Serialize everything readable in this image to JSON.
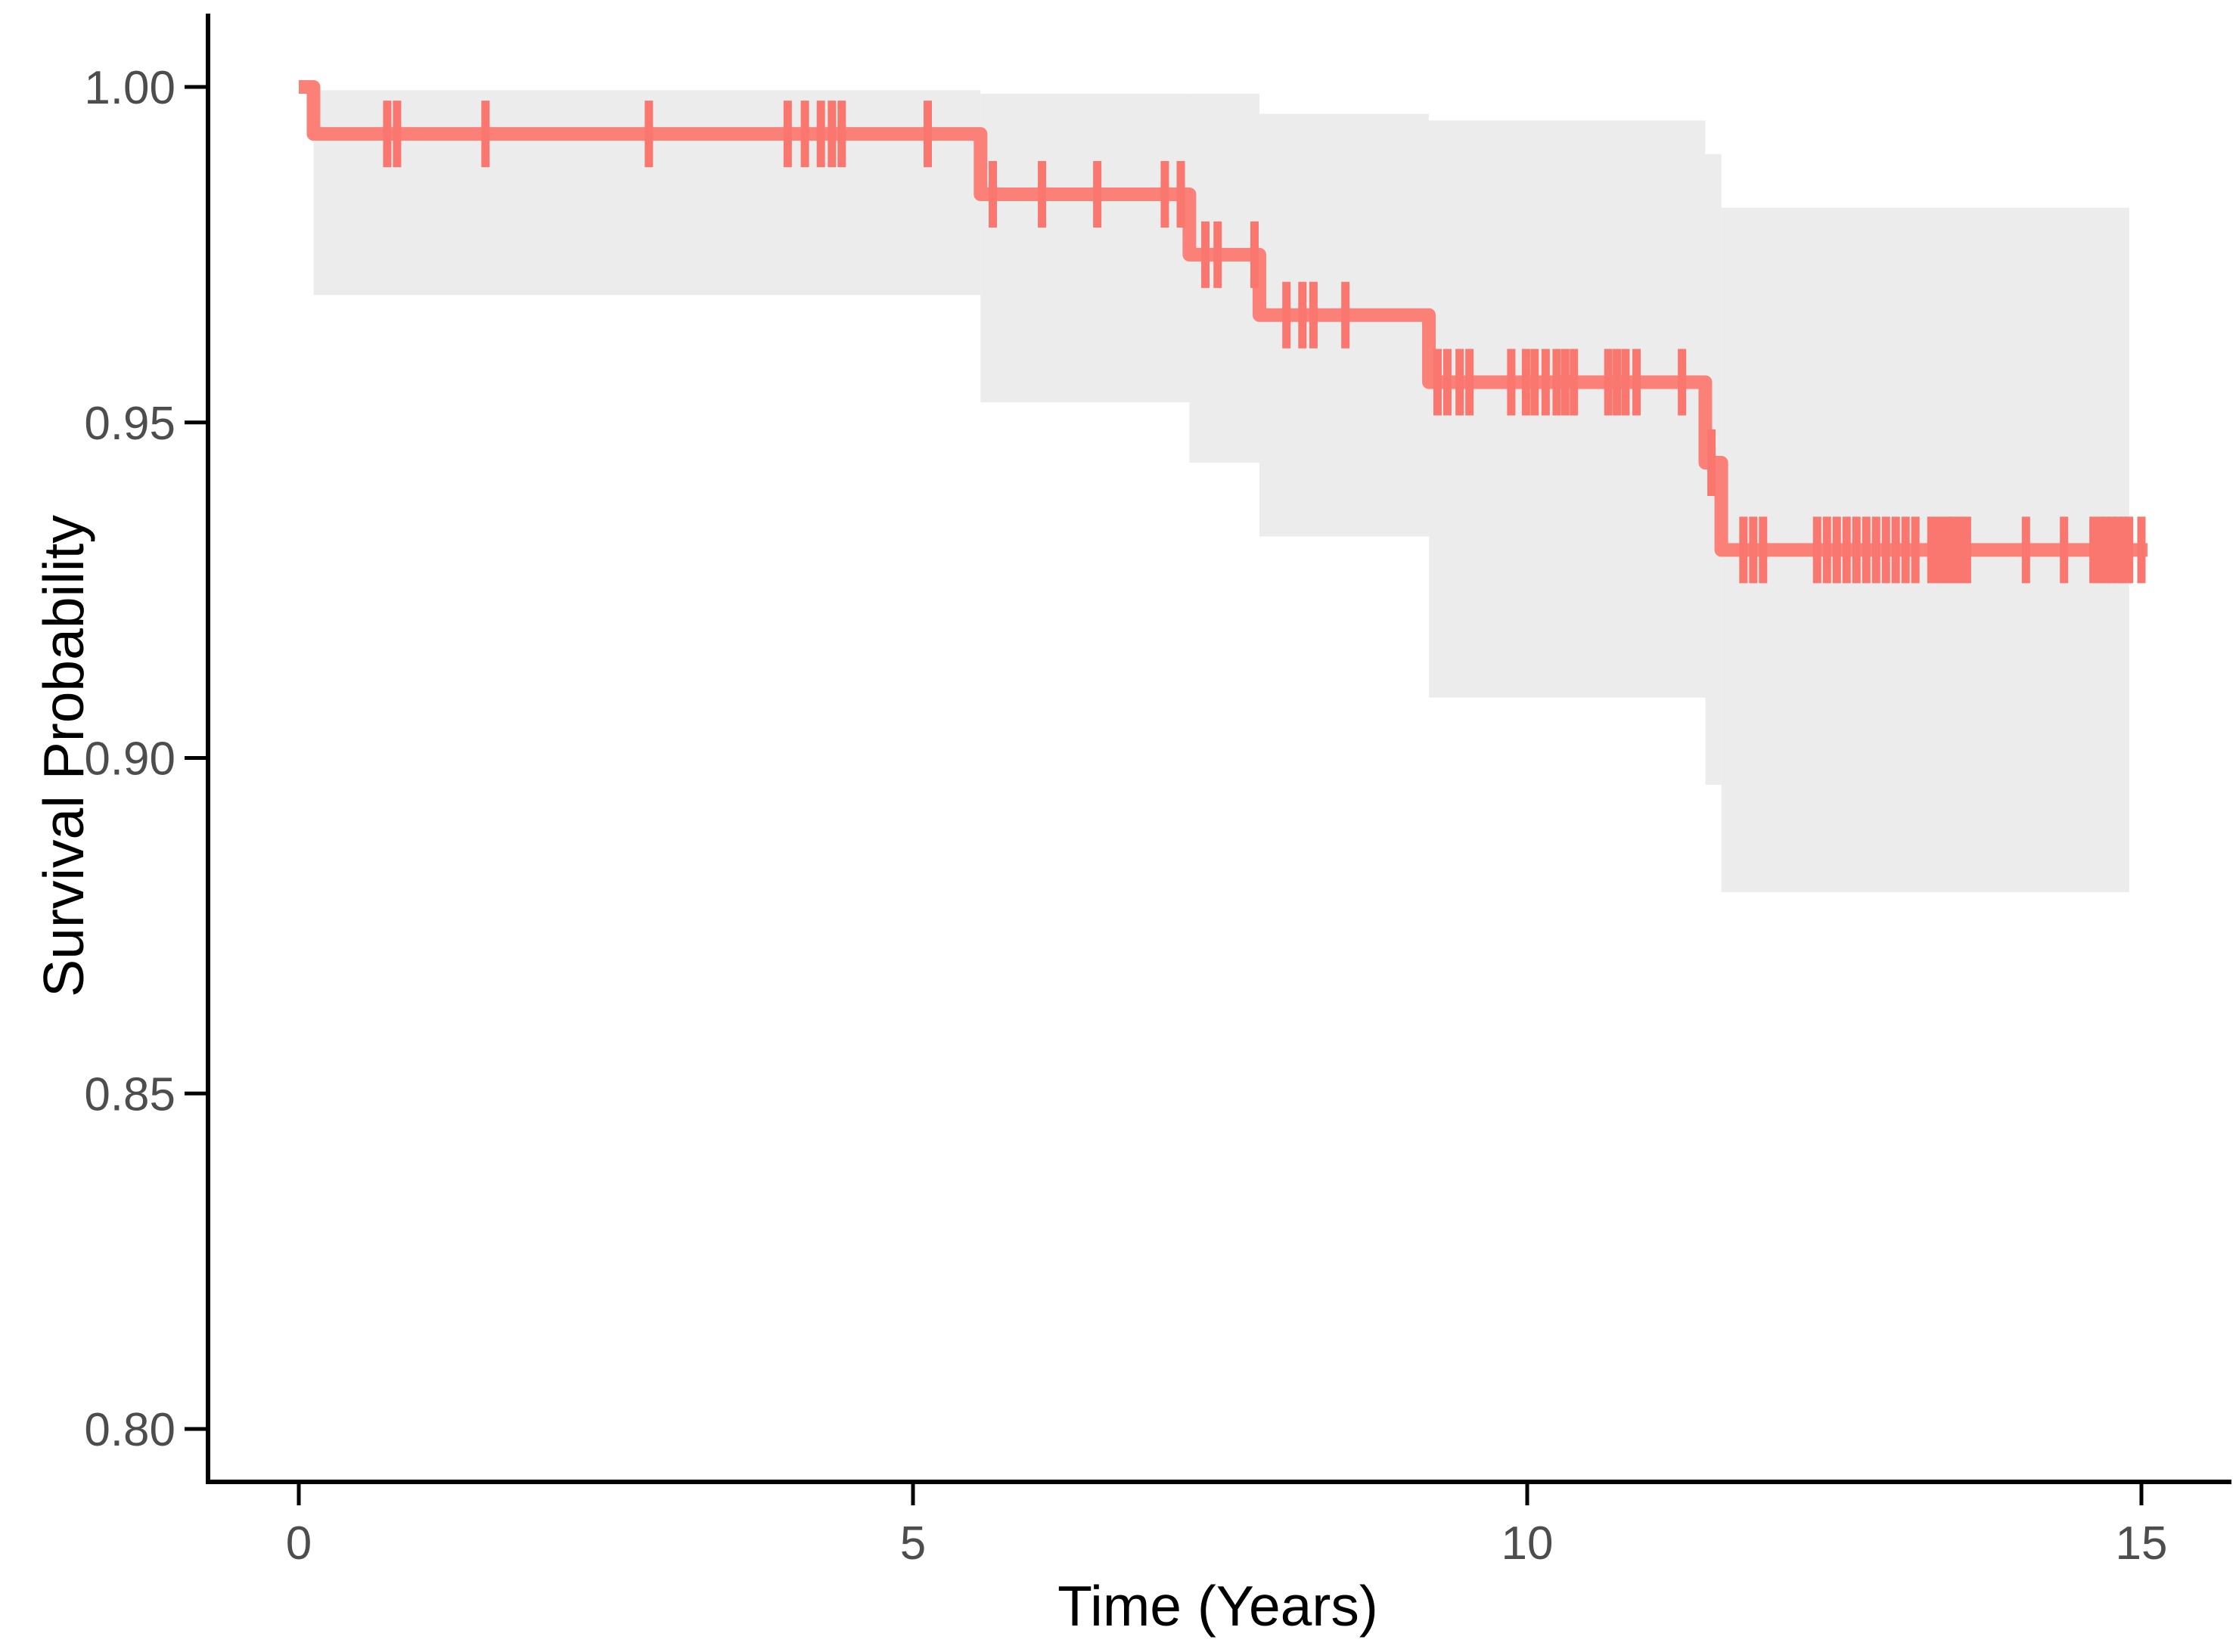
{
  "chart_data": {
    "type": "line",
    "subtype": "kaplan_meier_step_curve",
    "title": "",
    "xlabel": "Time (Years)",
    "ylabel": "Survival Probability",
    "x_ticks": [
      {
        "value": 0,
        "label": "0"
      },
      {
        "value": 5,
        "label": "5"
      },
      {
        "value": 10,
        "label": "10"
      },
      {
        "value": 15,
        "label": "15"
      }
    ],
    "y_ticks": [
      {
        "value": 1.0,
        "label": "1.00"
      },
      {
        "value": 0.95,
        "label": "0.95"
      },
      {
        "value": 0.9,
        "label": "0.90"
      },
      {
        "value": 0.85,
        "label": "0.85"
      },
      {
        "value": 0.8,
        "label": "0.80"
      }
    ],
    "xlim": [
      -0.74,
      15.73
    ],
    "ylim": [
      0.792,
      1.011
    ],
    "grid": false,
    "legend": false,
    "colors": {
      "curve": "#FA8078",
      "censor": "#F9776E",
      "ci_band": "#ECECEC",
      "axis": "#000000",
      "tick_label": "#4D4D4D",
      "title": "#000000",
      "background": "#FFFFFF"
    },
    "series": [
      {
        "name": "survival",
        "steps": [
          {
            "t": 0.0,
            "s": 1.0
          },
          {
            "t": 0.12,
            "s": 0.993
          },
          {
            "t": 5.55,
            "s": 0.984
          },
          {
            "t": 7.25,
            "s": 0.975
          },
          {
            "t": 7.82,
            "s": 0.966
          },
          {
            "t": 9.2,
            "s": 0.956
          },
          {
            "t": 11.45,
            "s": 0.944
          },
          {
            "t": 11.58,
            "s": 0.931
          }
        ],
        "end_time": 15.05,
        "censor_times": [
          [
            0.72,
            0.993
          ],
          [
            0.8,
            0.993
          ],
          [
            1.52,
            0.993
          ],
          [
            2.85,
            0.993
          ],
          [
            3.98,
            0.993
          ],
          [
            4.12,
            0.993
          ],
          [
            4.25,
            0.993
          ],
          [
            4.34,
            0.993
          ],
          [
            4.42,
            0.993
          ],
          [
            5.12,
            0.993
          ],
          [
            5.65,
            0.984
          ],
          [
            6.05,
            0.984
          ],
          [
            6.5,
            0.984
          ],
          [
            7.05,
            0.984
          ],
          [
            7.18,
            0.984
          ],
          [
            7.38,
            0.975
          ],
          [
            7.48,
            0.975
          ],
          [
            7.78,
            0.975
          ],
          [
            8.04,
            0.966
          ],
          [
            8.17,
            0.966
          ],
          [
            8.26,
            0.966
          ],
          [
            8.52,
            0.966
          ],
          [
            9.27,
            0.956
          ],
          [
            9.35,
            0.956
          ],
          [
            9.45,
            0.956
          ],
          [
            9.53,
            0.956
          ],
          [
            9.87,
            0.956
          ],
          [
            9.99,
            0.956
          ],
          [
            10.06,
            0.956
          ],
          [
            10.15,
            0.956
          ],
          [
            10.24,
            0.956
          ],
          [
            10.31,
            0.956
          ],
          [
            10.38,
            0.956
          ],
          [
            10.66,
            0.956
          ],
          [
            10.73,
            0.956
          ],
          [
            10.8,
            0.956
          ],
          [
            10.89,
            0.956
          ],
          [
            11.26,
            0.956
          ],
          [
            11.5,
            0.944
          ],
          [
            11.76,
            0.931
          ],
          [
            11.84,
            0.931
          ],
          [
            11.92,
            0.931
          ],
          [
            12.36,
            0.931
          ],
          [
            12.44,
            0.931
          ],
          [
            12.52,
            0.931
          ],
          [
            12.6,
            0.931
          ],
          [
            12.68,
            0.931
          ],
          [
            12.76,
            0.931
          ],
          [
            12.84,
            0.931
          ],
          [
            12.92,
            0.931
          ],
          [
            13.0,
            0.931
          ],
          [
            13.08,
            0.931
          ],
          [
            13.16,
            0.931
          ],
          [
            13.29,
            0.931
          ],
          [
            13.35,
            0.931
          ],
          [
            13.41,
            0.931
          ],
          [
            13.46,
            0.931
          ],
          [
            13.52,
            0.931
          ],
          [
            13.58,
            0.931
          ],
          [
            14.06,
            0.931
          ],
          [
            14.37,
            0.931
          ],
          [
            14.61,
            0.931
          ],
          [
            14.67,
            0.931
          ],
          [
            14.72,
            0.931
          ],
          [
            14.76,
            0.931
          ],
          [
            14.81,
            0.931
          ],
          [
            14.85,
            0.931
          ],
          [
            14.9,
            0.931
          ],
          [
            15.0,
            0.931
          ]
        ]
      }
    ],
    "confidence_band": {
      "segments": [
        {
          "t0": 0.12,
          "t1": 5.55,
          "upper": 0.9995,
          "lower": 0.969
        },
        {
          "t0": 5.55,
          "t1": 7.25,
          "upper": 0.999,
          "lower": 0.953
        },
        {
          "t0": 7.25,
          "t1": 7.82,
          "upper": 0.999,
          "lower": 0.944
        },
        {
          "t0": 7.82,
          "t1": 9.2,
          "upper": 0.996,
          "lower": 0.933
        },
        {
          "t0": 9.2,
          "t1": 11.45,
          "upper": 0.995,
          "lower": 0.909
        },
        {
          "t0": 11.45,
          "t1": 11.58,
          "upper": 0.99,
          "lower": 0.896
        },
        {
          "t0": 11.58,
          "t1": 14.9,
          "upper": 0.982,
          "lower": 0.88
        }
      ]
    }
  }
}
